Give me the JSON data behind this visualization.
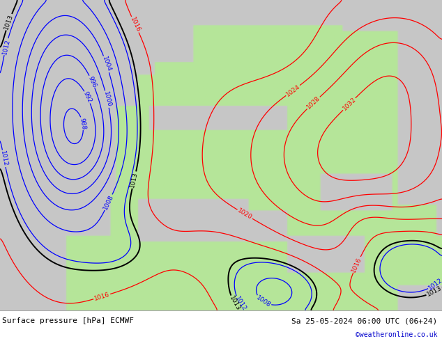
{
  "title_left": "Surface pressure [hPa] ECMWF",
  "title_right": "Sa 25-05-2024 06:00 UTC (06+24)",
  "credit": "©weatheronline.co.uk",
  "footer_fontsize": 8,
  "credit_color": "#0000cc",
  "ocean_color_rgb": [
    0.78,
    0.78,
    0.78
  ],
  "land_color_rgb": [
    0.71,
    0.9,
    0.6
  ],
  "footer_bg": "#e0e0e0"
}
